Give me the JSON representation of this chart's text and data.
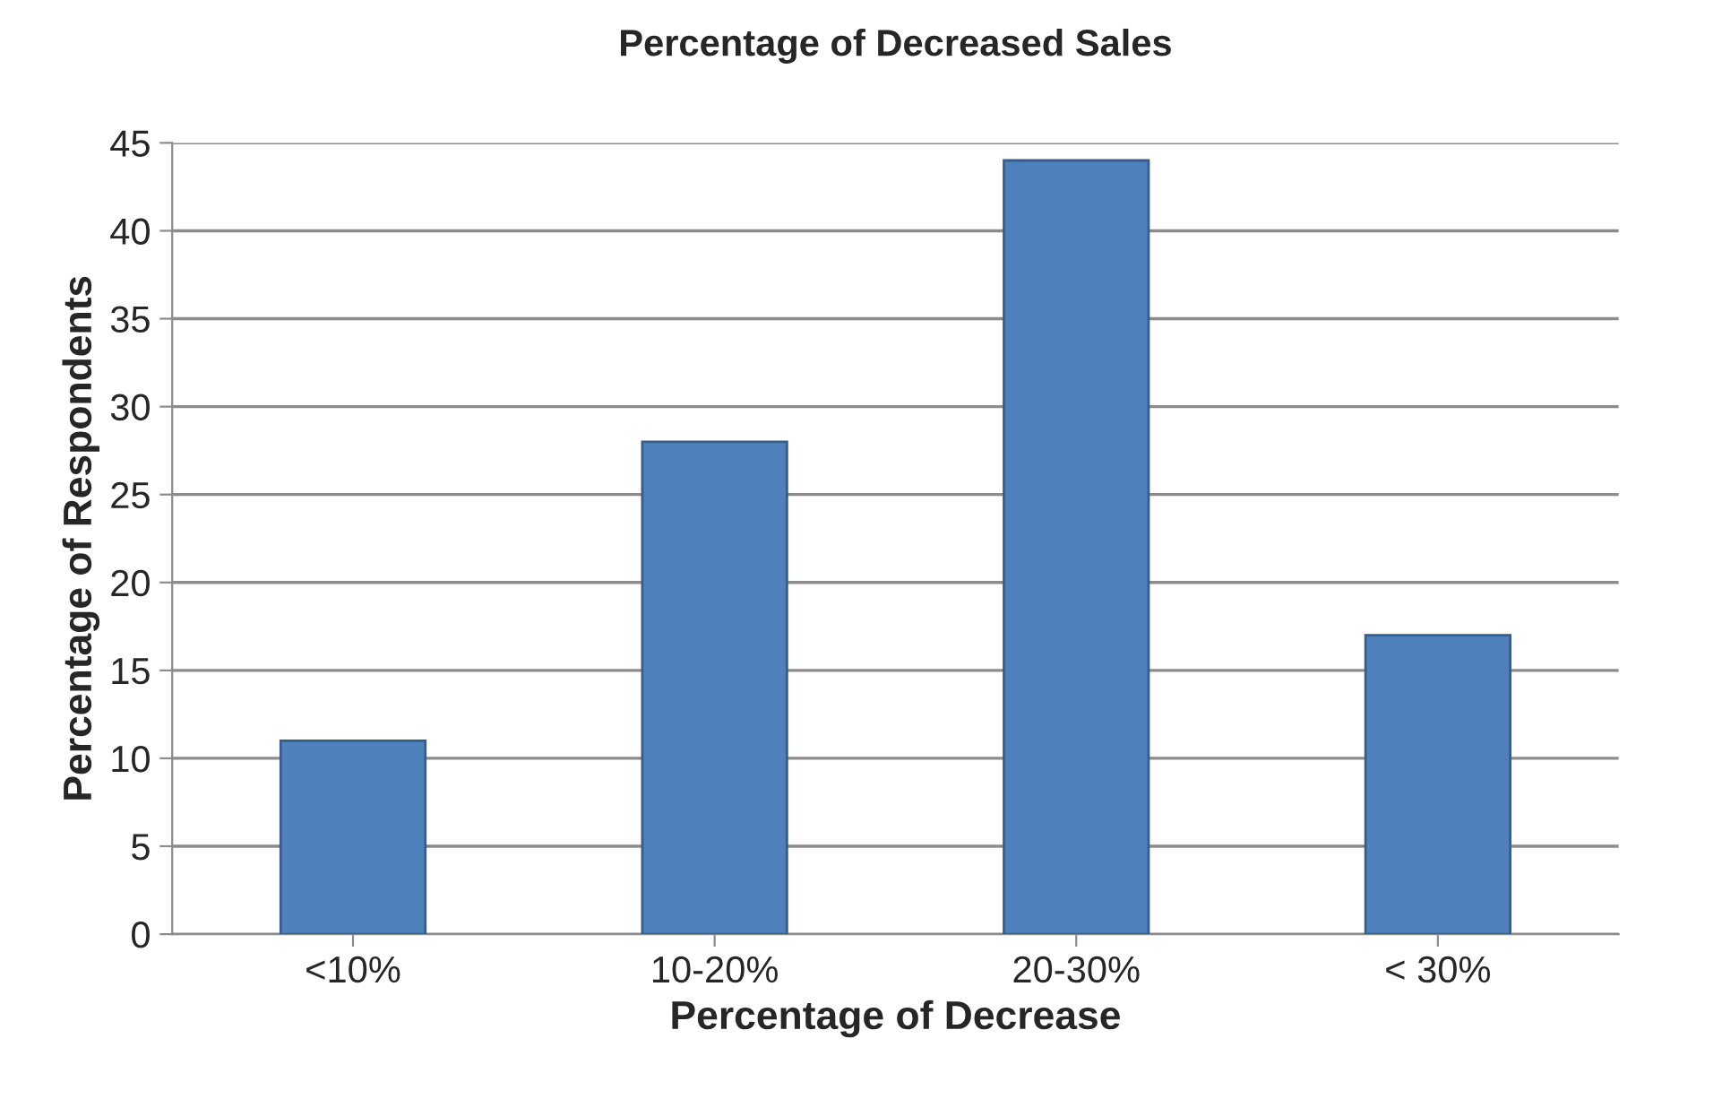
{
  "chart_data": {
    "type": "bar",
    "title": "Percentage of Decreased Sales",
    "xlabel": "Percentage of Decrease",
    "ylabel": "Percentage of Respondents",
    "categories": [
      "<10%",
      "10-20%",
      "20-30%",
      "< 30%"
    ],
    "values": [
      11,
      28,
      44,
      17
    ],
    "color": "#4f81bd",
    "ylim": [
      0,
      45
    ],
    "yticks": [
      0,
      5,
      10,
      15,
      20,
      25,
      30,
      35,
      40,
      45
    ],
    "grid": "y"
  }
}
